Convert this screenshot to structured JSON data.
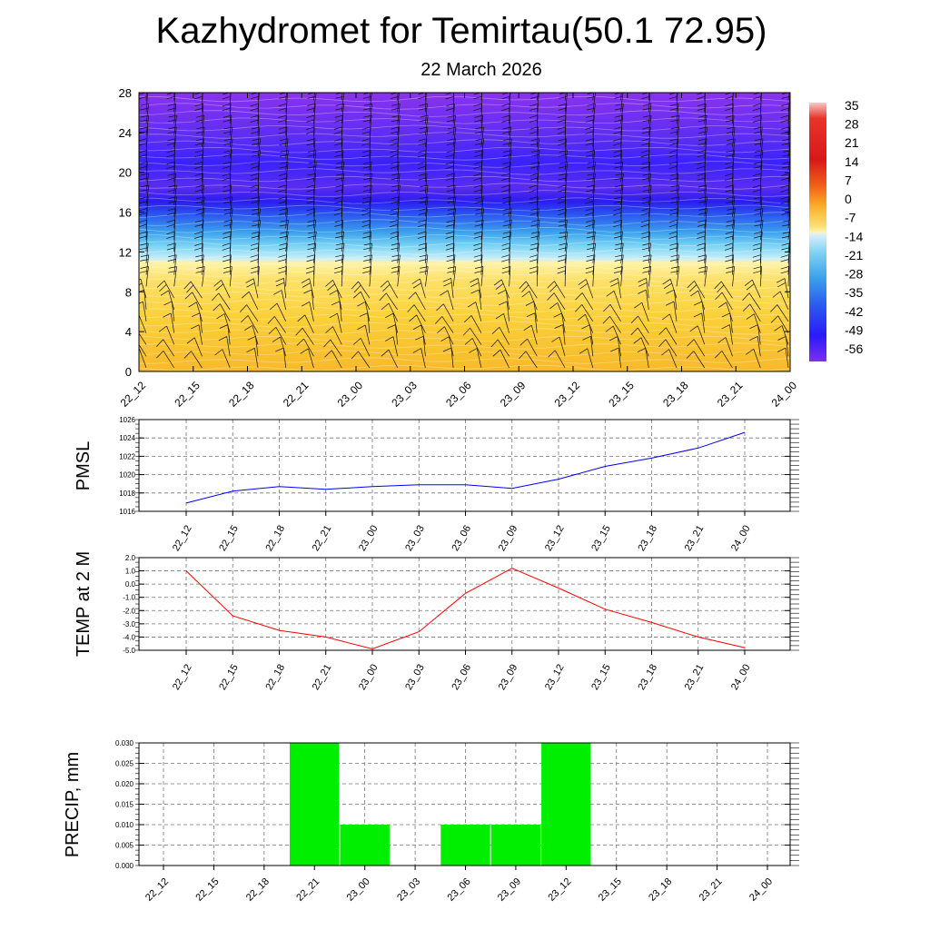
{
  "header": {
    "title": "Kazhydromet for Temirtau(50.1 72.95)",
    "subtitle": "22 March 2026"
  },
  "colorbar": {
    "labels": [
      "35",
      "28",
      "21",
      "14",
      "7",
      "0",
      "-7",
      "-14",
      "-21",
      "-28",
      "-35",
      "-42",
      "-49",
      "-56"
    ]
  },
  "chart_data": [
    {
      "type": "heatmap",
      "title": "",
      "xlabel": "",
      "ylabel": "",
      "categories": [
        "22_12",
        "22_15",
        "22_18",
        "22_21",
        "23_00",
        "23_03",
        "23_06",
        "23_09",
        "23_12",
        "23_15",
        "23_18",
        "23_21",
        "24_00"
      ],
      "y_ticks": [
        "0",
        "4",
        "8",
        "12",
        "16",
        "20",
        "24",
        "28"
      ],
      "ylim": [
        0,
        28
      ],
      "colors": {
        "warm": "#fbbf1e",
        "cold": "#3b1cff",
        "top": "#8a2cf0"
      },
      "note": "vertical temperature cross-section with wind barbs"
    },
    {
      "type": "line",
      "ylabel": "PMSL",
      "categories": [
        "22_12",
        "22_15",
        "22_18",
        "22_21",
        "23_00",
        "23_03",
        "23_06",
        "23_09",
        "23_12",
        "23_15",
        "23_18",
        "23_21",
        "24_00"
      ],
      "series": [
        {
          "values": [
            1016.9,
            1018.2,
            1018.7,
            1018.4,
            1018.7,
            1018.9,
            1018.9,
            1018.5,
            1019.5,
            1020.9,
            1021.8,
            1022.9,
            1024.6
          ],
          "color": "#0000ff"
        }
      ],
      "ylim": [
        1016,
        1026
      ],
      "y_ticks": [
        "1016",
        "1018",
        "1020",
        "1022",
        "1024",
        "1026"
      ],
      "grid": true
    },
    {
      "type": "line",
      "ylabel": "TEMP at 2 M",
      "categories": [
        "22_12",
        "22_15",
        "22_18",
        "22_21",
        "23_00",
        "23_03",
        "23_06",
        "23_09",
        "23_12",
        "23_15",
        "23_18",
        "23_21",
        "24_00"
      ],
      "series": [
        {
          "values": [
            1.0,
            -2.4,
            -3.5,
            -4.0,
            -4.9,
            -3.6,
            -0.7,
            1.2,
            -0.3,
            -1.9,
            -2.9,
            -4.0,
            -4.8
          ],
          "color": "#ff0000"
        }
      ],
      "ylim": [
        -5,
        2
      ],
      "y_ticks": [
        "-5.0",
        "-4.0",
        "-3.0",
        "-2.0",
        "-1.0",
        "0.0",
        "1.0",
        "2.0"
      ],
      "grid": true
    },
    {
      "type": "bar",
      "ylabel": "PRECIP, mm",
      "categories": [
        "22_12",
        "22_15",
        "22_18",
        "22_21",
        "23_00",
        "23_03",
        "23_06",
        "23_09",
        "23_12",
        "23_15",
        "23_18",
        "23_21",
        "24_00"
      ],
      "values": [
        0,
        0,
        0,
        0.03,
        0.01,
        0,
        0.01,
        0.01,
        0.03,
        0,
        0,
        0,
        0
      ],
      "ylim": [
        0,
        0.03
      ],
      "y_ticks": [
        "0.000",
        "0.005",
        "0.010",
        "0.015",
        "0.020",
        "0.025",
        "0.030"
      ],
      "bar_color": "#00ee00",
      "grid": true
    }
  ]
}
